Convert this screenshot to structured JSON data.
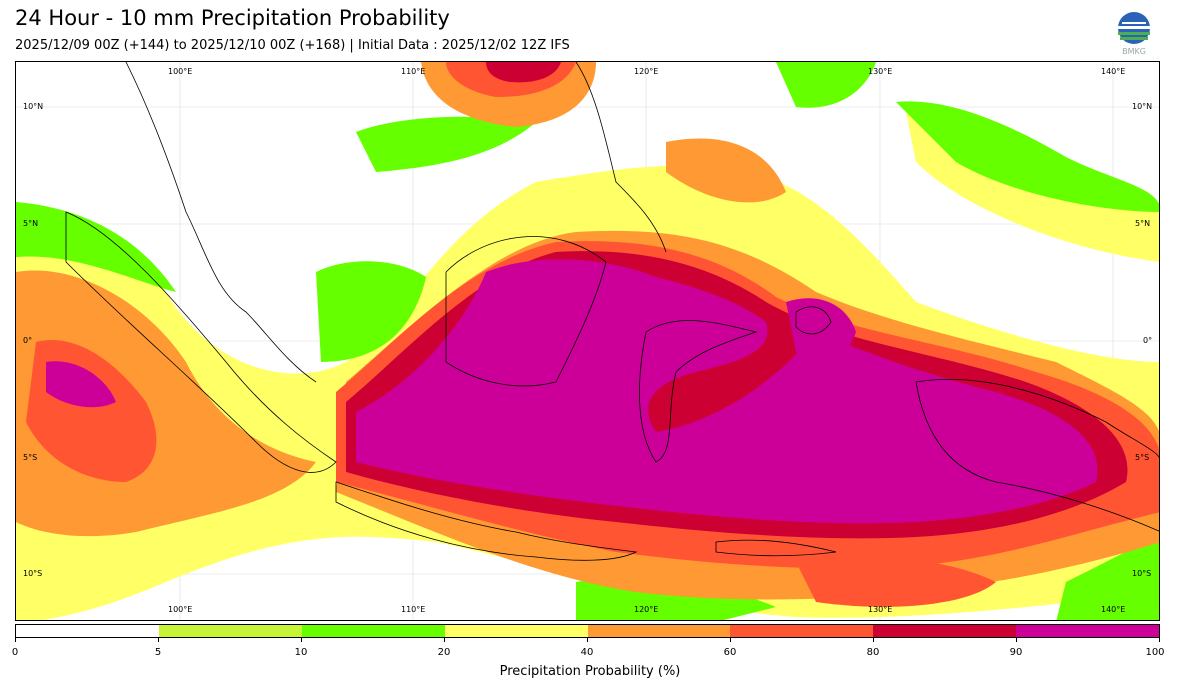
{
  "header": {
    "title": "24 Hour - 10 mm Precipitation Probability",
    "subtitle": "2025/12/09 00Z (+144) to 2025/12/10 00Z (+168) | Initial Data : 2025/12/02 12Z IFS",
    "logo_text": "BMKG"
  },
  "map": {
    "region": "Indonesia / Maritime Continent",
    "lon_labels": [
      "100°E",
      "110°E",
      "120°E",
      "130°E",
      "140°E"
    ],
    "lat_labels": [
      "10°N",
      "5°N",
      "0°",
      "5°S",
      "10°S"
    ],
    "colors": {
      "land_outline": "#000000",
      "ocean": "#ffffff",
      "bin_5_10": "#c6f537",
      "bin_10_20": "#66ff00",
      "bin_20_40": "#ffff66",
      "bin_40_60": "#ff9933",
      "bin_60_80": "#ff5533",
      "bin_80_90": "#cc0033",
      "bin_90_100": "#cc0099"
    }
  },
  "colorbar": {
    "label": "Precipitation Probability (%)",
    "ticks": [
      "0",
      "5",
      "10",
      "20",
      "40",
      "60",
      "80",
      "90",
      "100"
    ],
    "bins": [
      {
        "range": "0-5",
        "color": "#ffffff"
      },
      {
        "range": "5-10",
        "color": "#c6f537"
      },
      {
        "range": "10-20",
        "color": "#66ff00"
      },
      {
        "range": "20-40",
        "color": "#ffff66"
      },
      {
        "range": "40-60",
        "color": "#ff9933"
      },
      {
        "range": "60-80",
        "color": "#ff5533"
      },
      {
        "range": "80-90",
        "color": "#cc0033"
      },
      {
        "range": "90-100",
        "color": "#cc0099"
      }
    ]
  }
}
